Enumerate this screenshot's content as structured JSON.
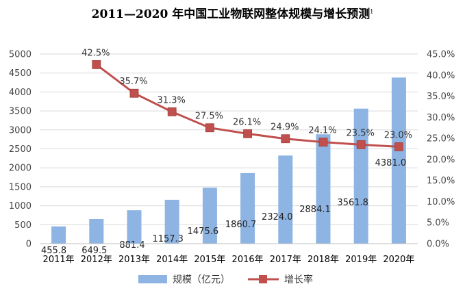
{
  "chart_data": {
    "type": "bar+line",
    "title": "2011—2020 年中国工业物联网整体规模与增长预测",
    "title_superscript": "1",
    "categories": [
      "2011年",
      "2012年",
      "2013年",
      "2014年",
      "2015年",
      "2016年",
      "2017年",
      "2018年",
      "2019年",
      "2020年"
    ],
    "series": [
      {
        "name": "规模（亿元）",
        "type": "bar",
        "axis": "left",
        "color": "#8db4e2",
        "values": [
          455.8,
          649.5,
          881.4,
          1157.3,
          1475.6,
          1860.7,
          2324.0,
          2884.1,
          3561.8,
          4381.0
        ],
        "labels": [
          "455.8",
          "649.5",
          "881.4",
          "1157.3",
          "1475.6",
          "1860.7",
          "2324.0",
          "2884.1",
          "3561.8",
          "4381.0"
        ]
      },
      {
        "name": "增长率",
        "type": "line",
        "axis": "right",
        "color": "#c0504d",
        "values": [
          null,
          42.5,
          35.7,
          31.3,
          27.5,
          26.1,
          24.9,
          24.1,
          23.5,
          23.0
        ],
        "labels": [
          null,
          "42.5%",
          "35.7%",
          "31.3%",
          "27.5%",
          "26.1%",
          "24.9%",
          "24.1%",
          "23.5%",
          "23.0%"
        ]
      }
    ],
    "y_left": {
      "min": 0,
      "max": 5000,
      "step": 500,
      "tick_labels": [
        "0",
        "500",
        "1000",
        "1500",
        "2000",
        "2500",
        "3000",
        "3500",
        "4000",
        "4500",
        "5000"
      ]
    },
    "y_right": {
      "min": 0,
      "max": 45,
      "step": 5,
      "tick_labels": [
        "0.0%",
        "5.0%",
        "10.0%",
        "15.0%",
        "20.0%",
        "25.0%",
        "30.0%",
        "35.0%",
        "40.0%",
        "45.0%"
      ]
    },
    "grid": true,
    "legend_position": "bottom-center"
  }
}
